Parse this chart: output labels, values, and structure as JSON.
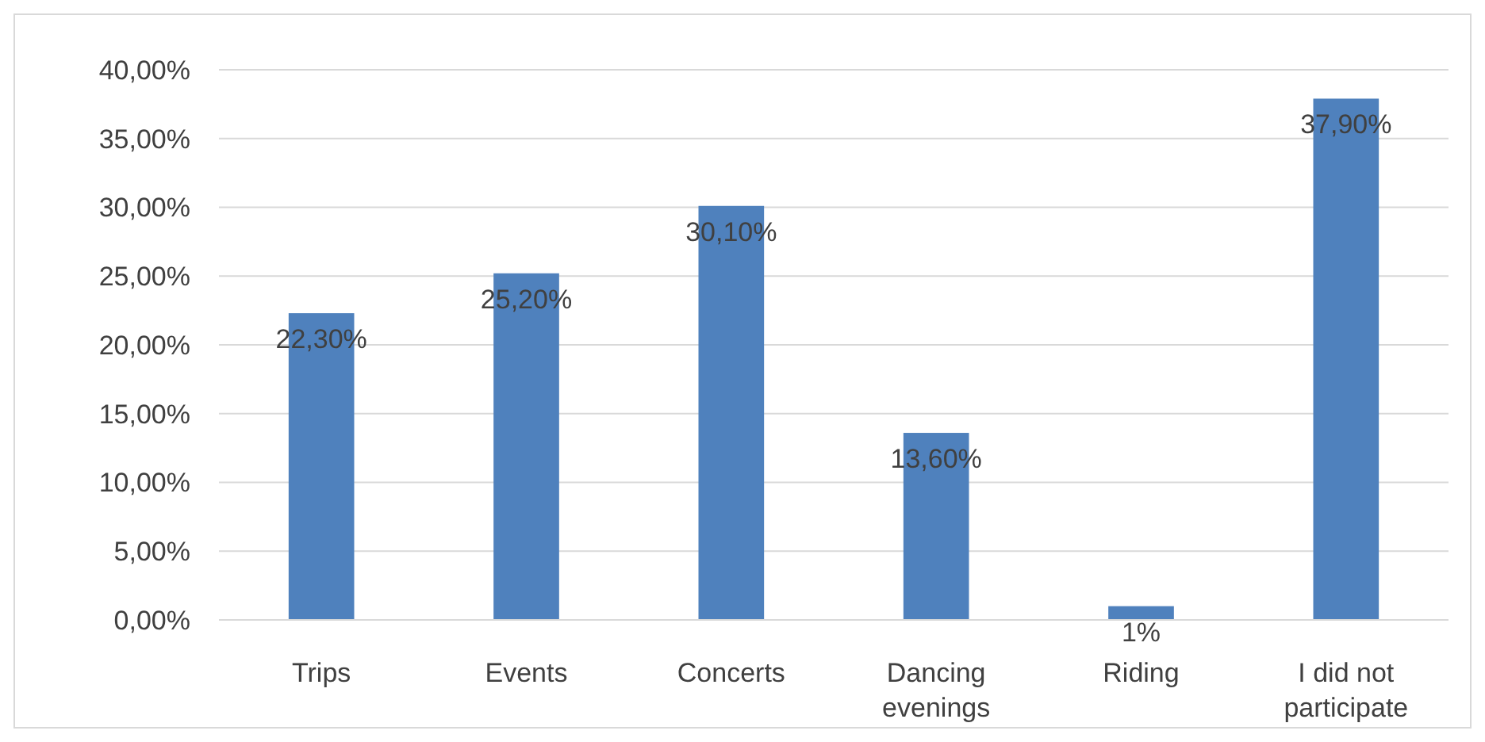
{
  "chart_data": {
    "type": "bar",
    "categories": [
      "Trips",
      "Events",
      "Concerts",
      "Dancing evenings",
      "Riding",
      "I did not participate"
    ],
    "values": [
      22.3,
      25.2,
      30.1,
      13.6,
      1,
      37.9
    ],
    "value_labels": [
      "22,30%",
      "25,20%",
      "30,10%",
      "13,60%",
      "1%",
      "37,90%"
    ],
    "color": "#4f81bd",
    "ylim": [
      0,
      40
    ],
    "yticks": [
      {
        "value": 0,
        "label": "0,00%"
      },
      {
        "value": 5,
        "label": "5,00%"
      },
      {
        "value": 10,
        "label": "10,00%"
      },
      {
        "value": 15,
        "label": "15,00%"
      },
      {
        "value": 20,
        "label": "20,00%"
      },
      {
        "value": 25,
        "label": "25,00%"
      },
      {
        "value": 30,
        "label": "30,00%"
      },
      {
        "value": 35,
        "label": "35,00%"
      },
      {
        "value": 40,
        "label": "40,00%"
      }
    ],
    "grid": "y"
  }
}
